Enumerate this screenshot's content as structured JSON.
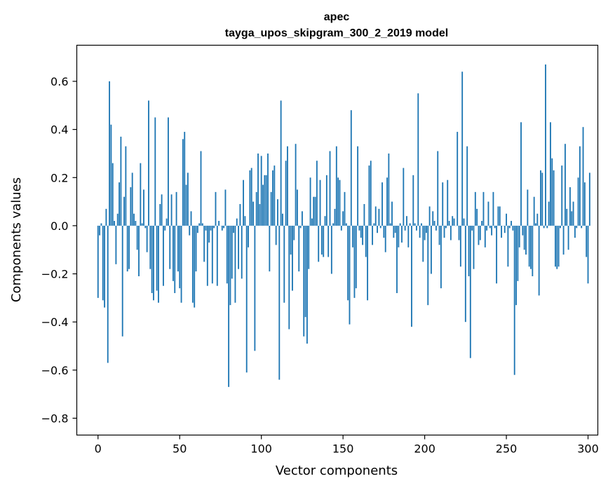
{
  "chart_data": {
    "type": "bar",
    "title": "apec",
    "subtitle": "tayga_upos_skipgram_300_2_2019 model",
    "xlabel": "Vector components",
    "ylabel": "Components values",
    "xlim": [
      -13,
      306
    ],
    "ylim": [
      -0.87,
      0.75
    ],
    "x_ticks": [
      0,
      50,
      100,
      150,
      200,
      250,
      300
    ],
    "x_tick_labels": [
      "0",
      "50",
      "100",
      "150",
      "200",
      "250",
      "300"
    ],
    "y_ticks": [
      0.6,
      0.4,
      0.2,
      0.0,
      -0.2,
      -0.4,
      -0.6,
      -0.8
    ],
    "y_tick_labels": [
      "0.6",
      "0.4",
      "0.2",
      "0.0",
      "−0.2",
      "−0.4",
      "−0.6",
      "−0.8"
    ],
    "grid": false,
    "bar_color": "#1f77b4",
    "values": [
      -0.3,
      -0.04,
      0.01,
      -0.31,
      -0.34,
      0.07,
      -0.57,
      0.6,
      0.42,
      0.26,
      0.02,
      -0.16,
      0.05,
      0.18,
      0.37,
      -0.46,
      0.12,
      0.33,
      -0.19,
      -0.18,
      0.16,
      0.22,
      0.05,
      0.02,
      -0.1,
      -0.21,
      0.26,
      0.01,
      0.15,
      -0.01,
      -0.11,
      0.52,
      -0.18,
      -0.28,
      -0.31,
      0.45,
      -0.27,
      -0.32,
      0.09,
      0.13,
      -0.25,
      -0.02,
      0.03,
      0.45,
      -0.18,
      0.13,
      -0.23,
      -0.28,
      0.14,
      -0.19,
      -0.26,
      -0.32,
      0.36,
      0.39,
      0.17,
      0.22,
      -0.04,
      0.06,
      -0.32,
      -0.34,
      -0.19,
      -0.03,
      0.01,
      0.31,
      0.01,
      -0.15,
      -0.02,
      -0.25,
      -0.07,
      -0.02,
      -0.24,
      -0.01,
      0.14,
      -0.25,
      0.02,
      0.0,
      -0.02,
      -0.01,
      0.15,
      -0.24,
      -0.67,
      -0.33,
      -0.22,
      -0.03,
      -0.32,
      0.03,
      -0.18,
      0.09,
      -0.22,
      0.19,
      0.04,
      -0.61,
      -0.09,
      0.23,
      0.24,
      0.1,
      -0.52,
      0.14,
      0.3,
      0.09,
      0.29,
      0.17,
      0.21,
      0.21,
      0.3,
      -0.19,
      0.14,
      0.23,
      0.25,
      -0.08,
      0.11,
      -0.64,
      0.52,
      0.05,
      -0.32,
      0.27,
      0.33,
      -0.43,
      -0.12,
      -0.27,
      -0.06,
      0.34,
      0.15,
      -0.19,
      -0.01,
      0.06,
      -0.46,
      -0.38,
      -0.49,
      -0.18,
      0.2,
      0.03,
      0.12,
      0.12,
      0.27,
      -0.15,
      0.19,
      -0.12,
      -0.13,
      0.04,
      0.21,
      -0.13,
      0.31,
      -0.2,
      0.01,
      0.07,
      0.33,
      0.2,
      0.19,
      -0.02,
      0.06,
      0.14,
      0.01,
      -0.31,
      -0.41,
      0.48,
      -0.09,
      -0.3,
      -0.26,
      0.33,
      -0.02,
      -0.05,
      -0.08,
      0.09,
      -0.13,
      -0.31,
      0.25,
      0.27,
      -0.08,
      0.01,
      0.08,
      -0.03,
      0.07,
      -0.01,
      0.18,
      -0.05,
      -0.11,
      0.2,
      0.3,
      0.01,
      0.1,
      -0.05,
      -0.03,
      -0.28,
      -0.09,
      0.01,
      -0.07,
      0.24,
      -0.02,
      0.04,
      -0.09,
      0.01,
      -0.42,
      0.21,
      0.01,
      -0.02,
      0.55,
      -0.05,
      0.01,
      -0.15,
      -0.06,
      -0.03,
      -0.33,
      0.08,
      -0.2,
      0.06,
      0.02,
      -0.02,
      0.31,
      -0.08,
      -0.26,
      0.18,
      -0.05,
      -0.01,
      0.19,
      0.02,
      -0.06,
      0.04,
      0.03,
      0.0,
      0.39,
      -0.06,
      -0.17,
      0.64,
      0.03,
      -0.4,
      0.33,
      -0.21,
      -0.55,
      -0.02,
      -0.18,
      0.14,
      0.07,
      -0.08,
      -0.06,
      0.02,
      0.14,
      -0.09,
      -0.02,
      0.1,
      -0.01,
      -0.04,
      0.14,
      -0.01,
      -0.24,
      0.08,
      0.08,
      -0.05,
      0.0,
      -0.03,
      0.05,
      -0.17,
      -0.01,
      0.02,
      -0.02,
      -0.62,
      -0.33,
      -0.23,
      -0.09,
      0.43,
      -0.04,
      -0.1,
      -0.12,
      0.15,
      -0.17,
      -0.18,
      -0.21,
      0.12,
      0.01,
      0.05,
      -0.29,
      0.23,
      0.22,
      -0.01,
      0.67,
      -0.01,
      0.1,
      0.43,
      0.28,
      0.23,
      -0.17,
      -0.18,
      -0.17,
      -0.01,
      0.25,
      -0.12,
      0.34,
      0.07,
      -0.1,
      0.16,
      0.06,
      0.1,
      -0.05,
      -0.01,
      0.2,
      0.33,
      -0.01,
      0.41,
      0.18,
      -0.13,
      -0.24,
      0.22
    ]
  }
}
